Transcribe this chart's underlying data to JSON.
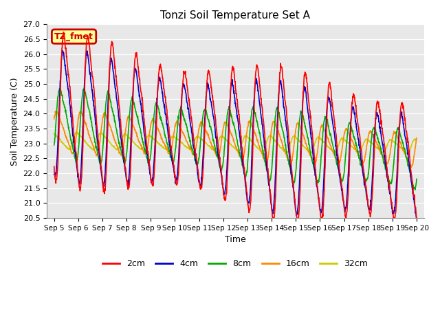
{
  "title": "Tonzi Soil Temperature Set A",
  "xlabel": "Time",
  "ylabel": "Soil Temperature (C)",
  "ylim": [
    20.5,
    27.0
  ],
  "yticks": [
    20.5,
    21.0,
    21.5,
    22.0,
    22.5,
    23.0,
    23.5,
    24.0,
    24.5,
    25.0,
    25.5,
    26.0,
    26.5,
    27.0
  ],
  "x_labels": [
    "Sep 5",
    "Sep 6",
    "Sep 7",
    "Sep 8",
    "Sep 9",
    "Sep 10",
    "Sep 11",
    "Sep 12",
    "Sep 13",
    "Sep 14",
    "Sep 15",
    "Sep 16",
    "Sep 17",
    "Sep 18",
    "Sep 19",
    "Sep 20"
  ],
  "annotation_text": "TZ_fmet",
  "annotation_bg": "#FFFF99",
  "annotation_border": "#CC0000",
  "line_colors": {
    "2cm": "#FF0000",
    "4cm": "#0000CC",
    "8cm": "#00AA00",
    "16cm": "#FF8800",
    "32cm": "#CCCC00"
  },
  "bg_color": "#E8E8E8"
}
